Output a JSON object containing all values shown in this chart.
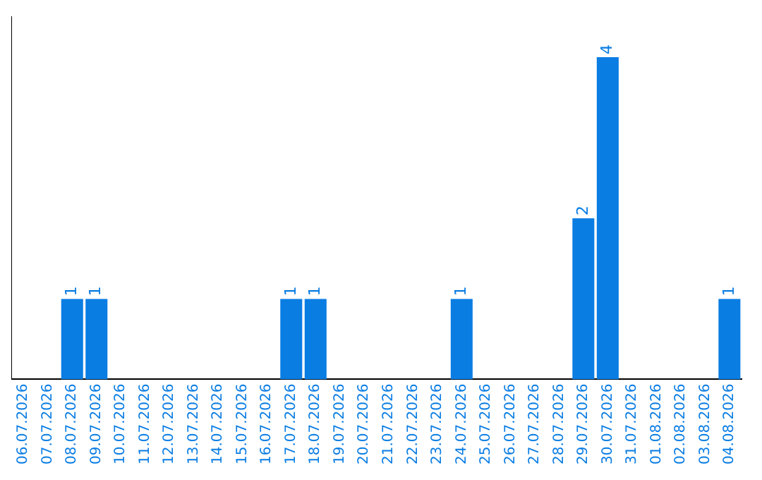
{
  "chart_data": {
    "type": "bar",
    "categories": [
      "06.07.2026",
      "07.07.2026",
      "08.07.2026",
      "09.07.2026",
      "10.07.2026",
      "11.07.2026",
      "12.07.2026",
      "13.07.2026",
      "14.07.2026",
      "15.07.2026",
      "16.07.2026",
      "17.07.2026",
      "18.07.2026",
      "19.07.2026",
      "20.07.2026",
      "21.07.2026",
      "22.07.2026",
      "23.07.2026",
      "24.07.2026",
      "25.07.2026",
      "26.07.2026",
      "27.07.2026",
      "28.07.2026",
      "29.07.2026",
      "30.07.2026",
      "31.07.2026",
      "01.08.2026",
      "02.08.2026",
      "03.08.2026",
      "04.08.2026"
    ],
    "values": [
      0,
      0,
      1,
      1,
      0,
      0,
      0,
      0,
      0,
      0,
      0,
      1,
      1,
      0,
      0,
      0,
      0,
      0,
      1,
      0,
      0,
      0,
      0,
      2,
      4,
      0,
      0,
      0,
      0,
      1
    ],
    "value_labels": [
      null,
      null,
      "1",
      "1",
      null,
      null,
      null,
      null,
      null,
      null,
      null,
      "1",
      "1",
      null,
      null,
      null,
      null,
      null,
      "1",
      null,
      null,
      null,
      null,
      "2",
      "4",
      null,
      null,
      null,
      null,
      "1"
    ],
    "color": "#0a7de3",
    "grid": false,
    "legend": false
  }
}
